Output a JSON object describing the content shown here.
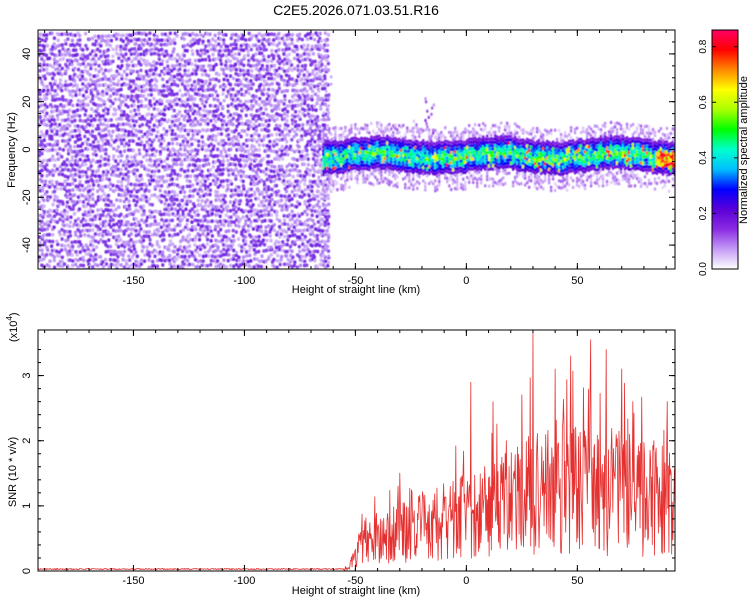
{
  "title": "C2E5.2026.071.03.51.R16",
  "colors": {
    "snr_line": "#e53030",
    "frame": "#000000",
    "noise_dark": "#6a16e0",
    "noise_light": "#d4b8f8"
  },
  "colorbar": {
    "label": "Normalized spectral amplitude",
    "ticks": [
      "0.0",
      "0.2",
      "0.4",
      "0.6",
      "0.8"
    ],
    "range": [
      0,
      0.86
    ],
    "colormap": [
      "#ffffff",
      "#c59bf5",
      "#8a2be2",
      "#5a00d8",
      "#0000ff",
      "#00bfff",
      "#00ffcc",
      "#00ff00",
      "#aaff00",
      "#ffff00",
      "#ff8800",
      "#ff0000",
      "#ff0066"
    ]
  },
  "chart_data": [
    {
      "type": "heatmap",
      "xlabel": "Height of straight line (km)",
      "ylabel": "Frequency (Hz)",
      "xlim": [
        -193,
        94
      ],
      "ylim": [
        -50,
        50
      ],
      "x_ticks": [
        -150,
        -100,
        -50,
        0,
        50
      ],
      "y_ticks": [
        -40,
        -20,
        0,
        20,
        40
      ],
      "x_tick_labels": [
        "-150",
        "-100",
        "-50",
        "0",
        "50"
      ],
      "y_tick_labels": [
        "-40",
        "-20",
        "0",
        "20",
        "40"
      ],
      "noise_region": {
        "x": [
          -193,
          -63
        ],
        "freq": [
          -50,
          50
        ],
        "amplitude": [
          0.0,
          0.1
        ]
      },
      "signal_band": {
        "x": [
          -65,
          94
        ],
        "center_freq": -2,
        "half_width": 7,
        "amplitude": [
          0.1,
          0.86
        ]
      },
      "spike": {
        "x": -17,
        "freq_top": 22
      }
    },
    {
      "type": "line",
      "xlabel": "Height of straight line (km)",
      "ylabel": "SNR (10 * v/v)",
      "y_scale_label": "(x10",
      "y_scale_exp": "4",
      "xlim": [
        -193,
        94
      ],
      "ylim": [
        0,
        3.7
      ],
      "x_ticks": [
        -150,
        -100,
        -50,
        0,
        50
      ],
      "y_ticks": [
        0,
        1,
        2,
        3
      ],
      "x_tick_labels": [
        "-150",
        "-100",
        "-50",
        "0",
        "50"
      ],
      "y_tick_labels": [
        "0",
        "1",
        "2",
        "3"
      ],
      "envelope": [
        {
          "x": -193,
          "y": 0.03
        },
        {
          "x": -55,
          "y": 0.03
        },
        {
          "x": -52,
          "y": 0.15
        },
        {
          "x": -45,
          "y": 0.6
        },
        {
          "x": -30,
          "y": 0.75
        },
        {
          "x": -15,
          "y": 0.9
        },
        {
          "x": 0,
          "y": 1.1
        },
        {
          "x": 15,
          "y": 1.3
        },
        {
          "x": 30,
          "y": 1.5
        },
        {
          "x": 45,
          "y": 1.6
        },
        {
          "x": 60,
          "y": 1.5
        },
        {
          "x": 75,
          "y": 1.5
        },
        {
          "x": 94,
          "y": 1.4
        }
      ],
      "peaks": [
        {
          "x": -30,
          "y": 1.5
        },
        {
          "x": 2,
          "y": 2.9
        },
        {
          "x": 12,
          "y": 2.6
        },
        {
          "x": 18,
          "y": 2.0
        },
        {
          "x": 30,
          "y": 3.65
        },
        {
          "x": 40,
          "y": 3.1
        },
        {
          "x": 47,
          "y": 3.3
        },
        {
          "x": 56,
          "y": 3.55
        },
        {
          "x": 63,
          "y": 3.4
        },
        {
          "x": 70,
          "y": 3.1
        },
        {
          "x": 75,
          "y": 2.6
        },
        {
          "x": 86,
          "y": 1.6
        }
      ]
    }
  ]
}
